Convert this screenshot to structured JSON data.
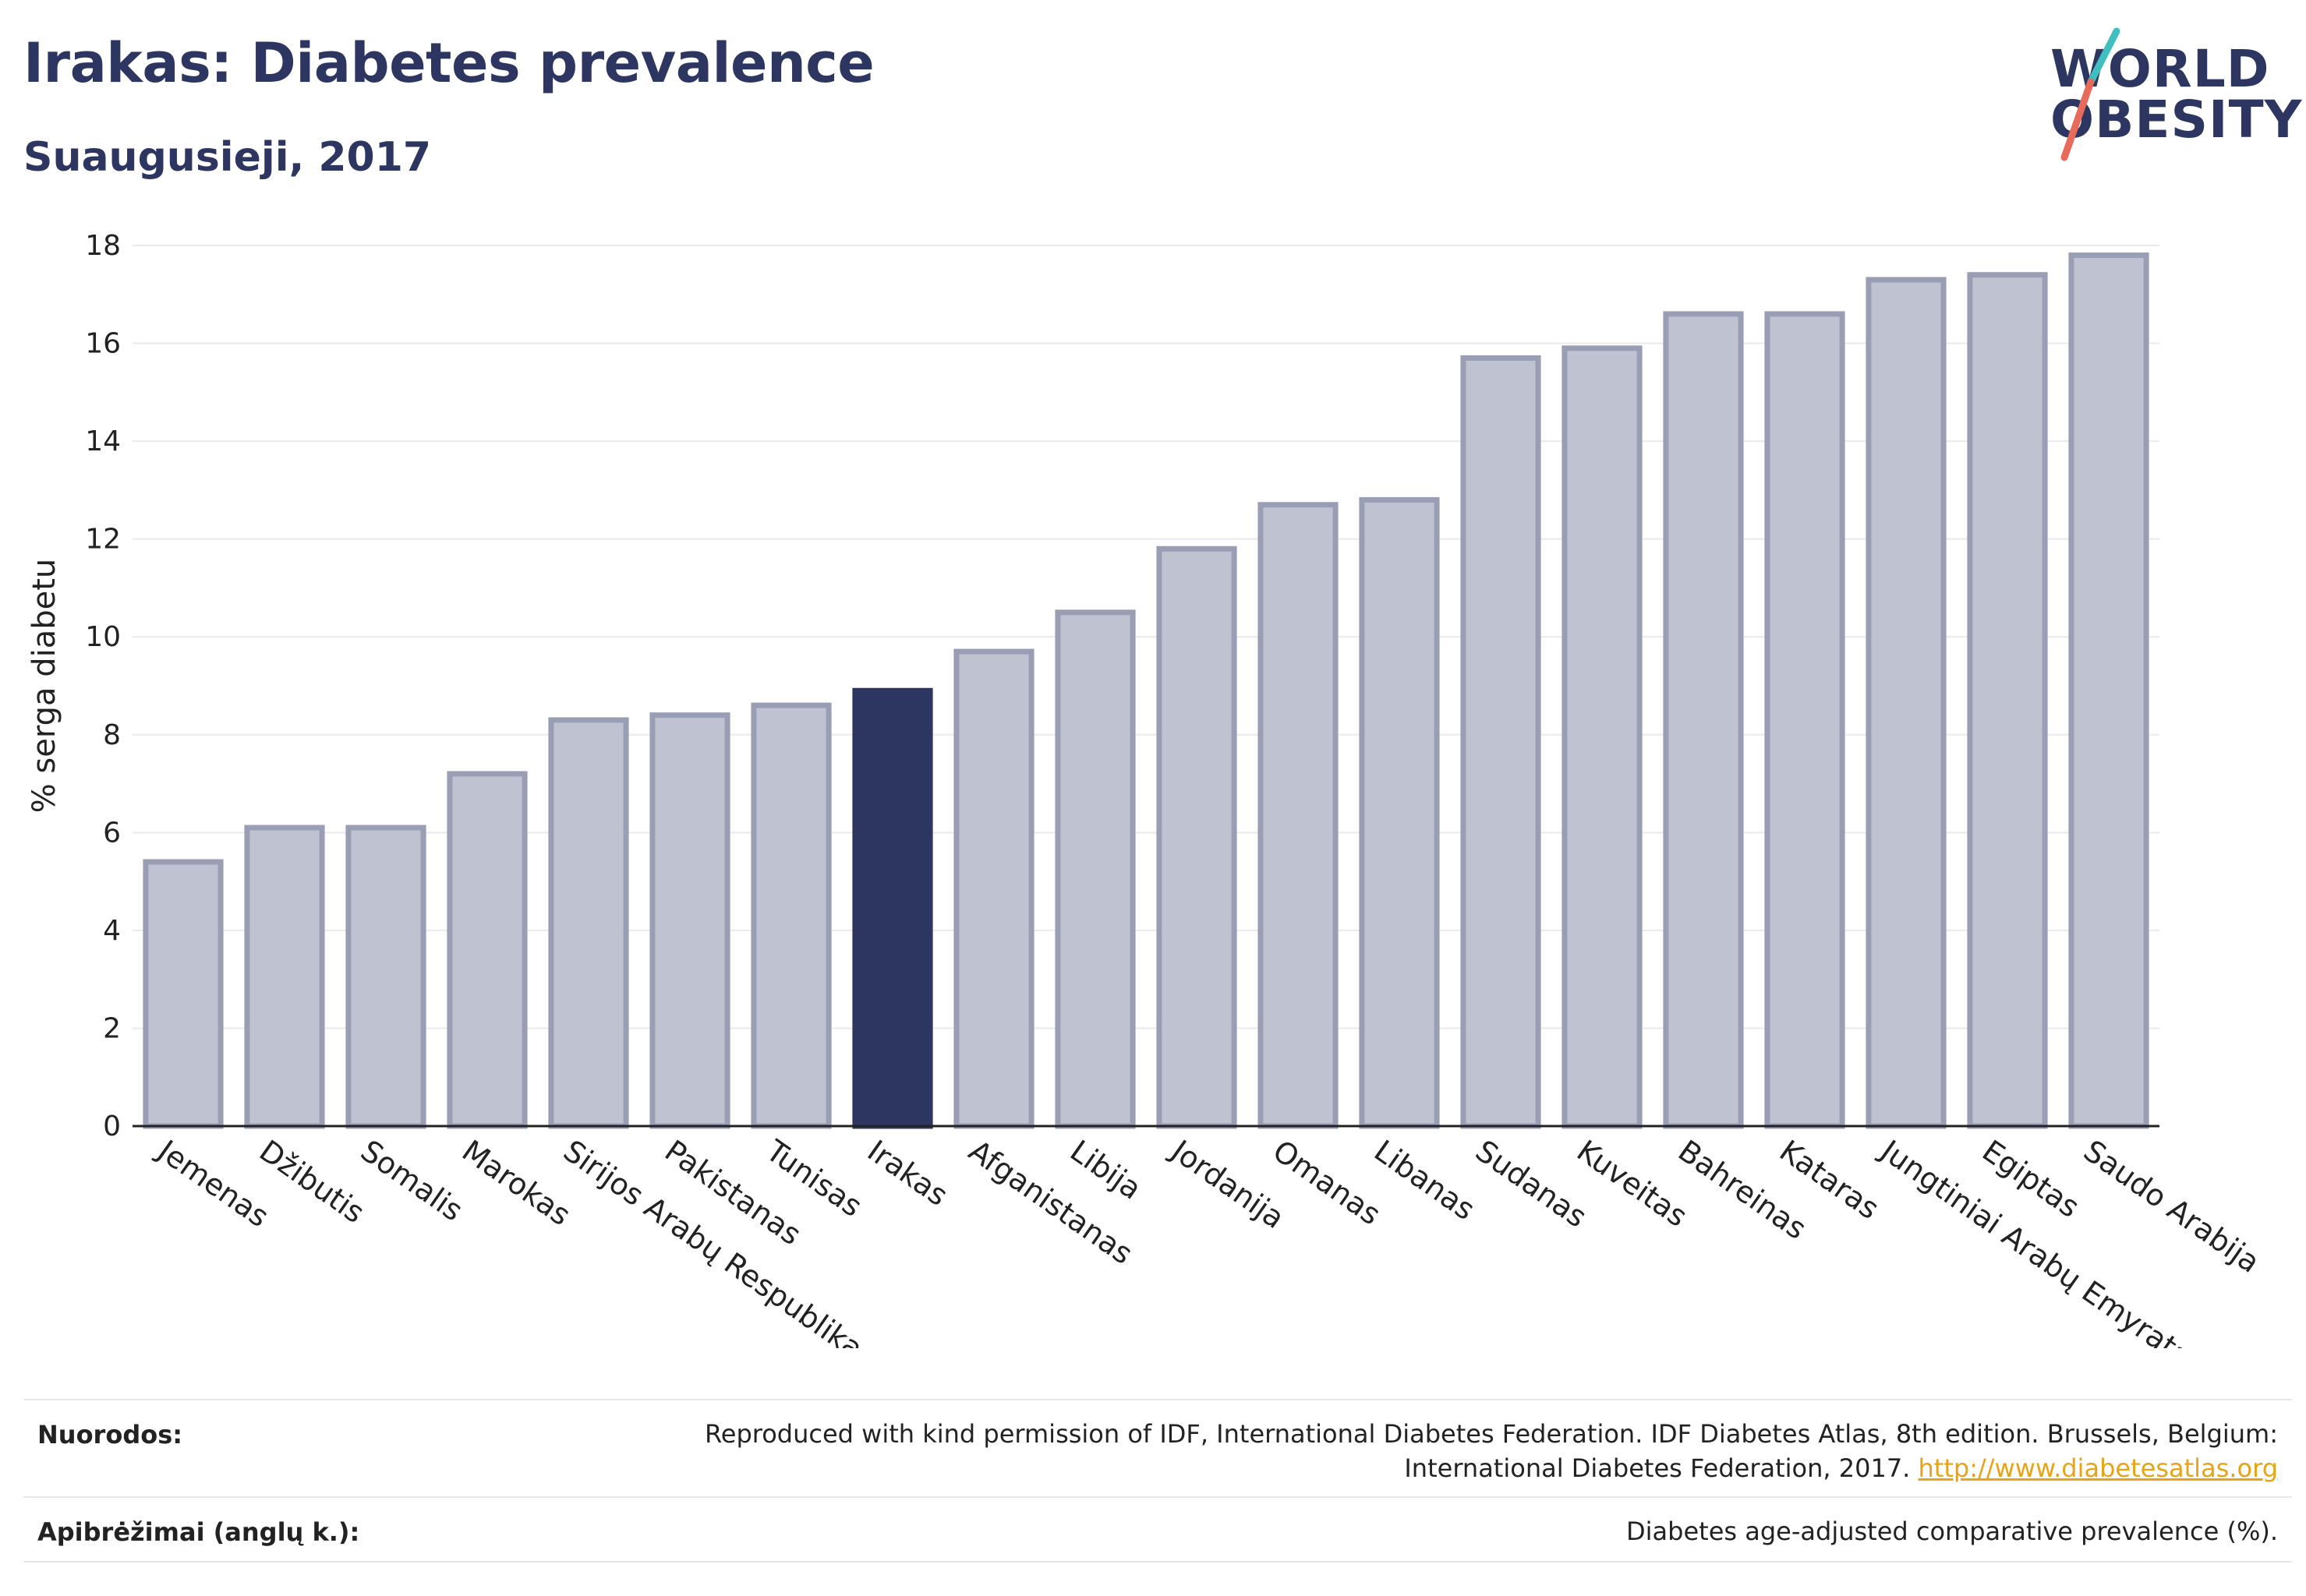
{
  "header": {
    "title": "Irakas: Diabetes prevalence",
    "subtitle": "Suaugusieji, 2017"
  },
  "logo": {
    "line1": "WORLD",
    "line2": "OBESITY",
    "colors": {
      "text": "#2d3660",
      "slash_top": "#3fbfbf",
      "slash_bottom": "#e86a5a"
    }
  },
  "chart_data": {
    "type": "bar",
    "ylabel": "% serga diabetu",
    "xlabel": "",
    "ylim": [
      0,
      18
    ],
    "yticks": [
      0,
      2,
      4,
      6,
      8,
      10,
      12,
      14,
      16,
      18
    ],
    "grid": true,
    "categories": [
      "Jemenas",
      "Džibutis",
      "Somalis",
      "Marokas",
      "Sirijos Arabų Respublika",
      "Pakistanas",
      "Tunisas",
      "Irakas",
      "Afganistanas",
      "Libija",
      "Jordanija",
      "Omanas",
      "Libanas",
      "Sudanas",
      "Kuveitas",
      "Bahreinas",
      "Kataras",
      "Jungtiniai Arabų Emyratai",
      "Egiptas",
      "Saudo Arabija"
    ],
    "values": [
      5.4,
      6.1,
      6.1,
      7.2,
      8.3,
      8.4,
      8.6,
      8.9,
      9.7,
      10.5,
      11.8,
      12.7,
      12.8,
      15.7,
      15.9,
      16.6,
      16.6,
      17.3,
      17.4,
      17.8
    ],
    "highlight": "Irakas",
    "colors": {
      "bar": "#bfc2d0",
      "bar_border": "#9a9eb5",
      "highlight": "#2d3660",
      "grid": "#e9e9ee",
      "axis": "#222222"
    }
  },
  "footer": {
    "sources_label": "Nuorodos:",
    "sources_text_line1": "Reproduced with kind permission of IDF, International Diabetes Federation. IDF Diabetes Atlas, 8th edition. Brussels, Belgium:",
    "sources_text_line2": "International Diabetes Federation, 2017.",
    "sources_link": "http://www.diabetesatlas.org",
    "definitions_label": "Apibrėžimai (anglų k.):",
    "definitions_text": "Diabetes age-adjusted comparative prevalence (%)."
  }
}
